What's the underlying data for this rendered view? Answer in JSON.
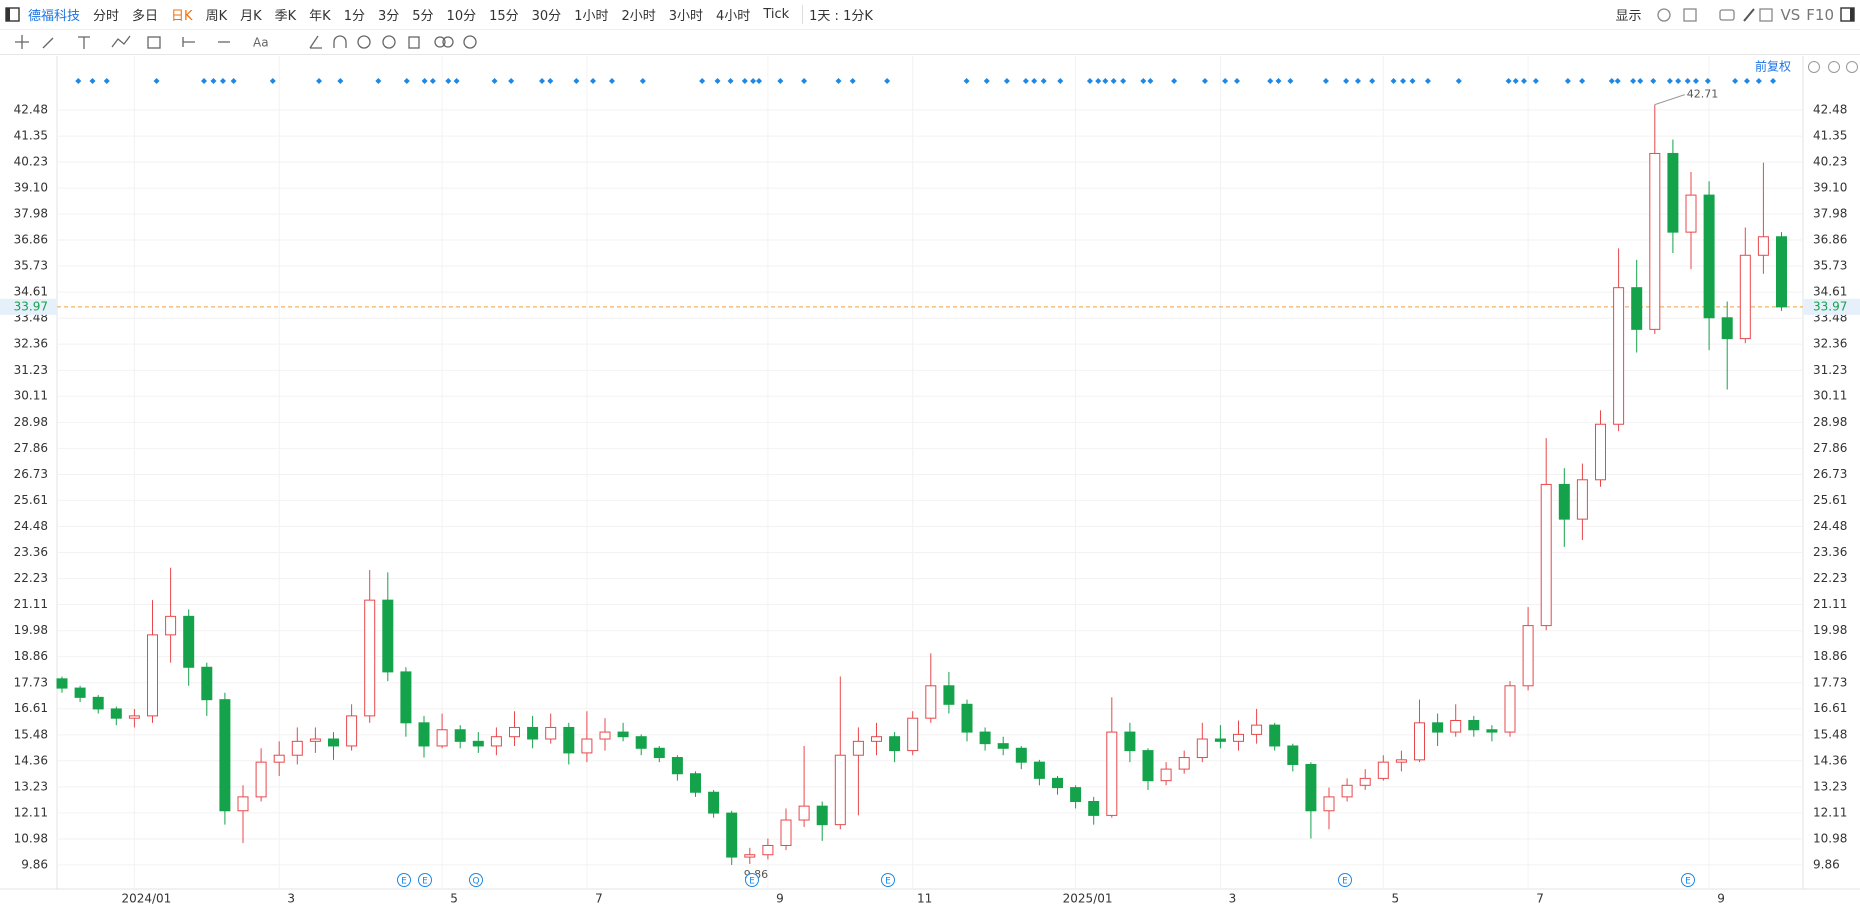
{
  "toolbar": {
    "symbol": "德福科技",
    "periods": [
      "分时",
      "多日",
      "日K",
      "周K",
      "月K",
      "季K",
      "年K",
      "1分",
      "3分",
      "5分",
      "10分",
      "15分",
      "30分",
      "1小时",
      "2小时",
      "3小时",
      "4小时",
      "Tick"
    ],
    "range": "1天 : 1分K",
    "display": "显示",
    "vs": "VS",
    "f10": "F10"
  },
  "adjust": "前复权",
  "chart_data": {
    "type": "candlestick",
    "categories": [
      null,
      null,
      null,
      null,
      "2024/01",
      null,
      null,
      null,
      null,
      null,
      null,
      null,
      "3",
      null,
      null,
      null,
      null,
      null,
      null,
      null,
      null,
      "5",
      null,
      null,
      null,
      null,
      null,
      null,
      null,
      "7",
      null,
      null,
      null,
      null,
      null,
      null,
      null,
      null,
      null,
      "9",
      null,
      null,
      null,
      null,
      null,
      null,
      null,
      "11",
      null,
      null,
      null,
      null,
      null,
      null,
      null,
      null,
      "2025/01",
      null,
      null,
      null,
      null,
      null,
      null,
      null,
      "3",
      null,
      null,
      null,
      null,
      null,
      null,
      null,
      null,
      "5",
      null,
      null,
      null,
      null,
      null,
      null,
      null,
      "7",
      null,
      null,
      null,
      null,
      null,
      null,
      null,
      null,
      null,
      "9",
      null,
      null,
      null,
      null
    ],
    "open": [
      17.9,
      17.5,
      17.1,
      16.6,
      16.2,
      16.3,
      19.8,
      20.6,
      18.4,
      17.0,
      12.2,
      12.8,
      14.3,
      14.6,
      15.2,
      15.3,
      15.0,
      16.3,
      21.3,
      18.2,
      16.0,
      15.0,
      15.7,
      15.2,
      15.0,
      15.4,
      15.8,
      15.3,
      15.8,
      14.7,
      15.3,
      15.6,
      15.4,
      14.9,
      14.5,
      13.8,
      13.0,
      12.1,
      10.2,
      10.3,
      10.7,
      11.8,
      12.4,
      11.6,
      14.6,
      15.2,
      15.4,
      14.8,
      16.2,
      17.6,
      16.8,
      15.6,
      15.1,
      14.9,
      14.3,
      13.6,
      13.2,
      12.6,
      12.0,
      15.6,
      14.8,
      13.5,
      14.0,
      14.5,
      15.3,
      15.2,
      15.5,
      15.9,
      15.0,
      14.2,
      12.2,
      12.8,
      13.3,
      13.6,
      14.3,
      14.4,
      16.0,
      15.6,
      16.1,
      15.7,
      15.6,
      17.6,
      20.2,
      26.3,
      24.8,
      26.5,
      28.9,
      34.8,
      33.0,
      40.6,
      37.2,
      38.8,
      33.5,
      32.6,
      36.2,
      37.0
    ],
    "high": [
      18.0,
      17.6,
      17.2,
      16.7,
      16.6,
      21.3,
      22.7,
      20.9,
      18.6,
      17.3,
      13.3,
      14.9,
      15.2,
      15.8,
      15.8,
      15.6,
      16.8,
      22.6,
      22.5,
      18.4,
      16.3,
      16.4,
      15.9,
      15.6,
      15.8,
      16.5,
      16.3,
      16.4,
      16.0,
      16.5,
      16.2,
      16.0,
      15.5,
      15.0,
      14.6,
      13.9,
      13.1,
      12.2,
      10.6,
      11.0,
      12.3,
      15.0,
      12.6,
      18.0,
      15.8,
      16.0,
      15.6,
      16.5,
      19.0,
      18.2,
      17.0,
      15.8,
      15.4,
      15.0,
      14.4,
      13.7,
      13.3,
      12.8,
      17.1,
      16.0,
      14.9,
      14.3,
      14.8,
      16.0,
      15.9,
      16.1,
      16.6,
      16.0,
      15.1,
      14.3,
      13.2,
      13.6,
      14.0,
      14.6,
      14.8,
      17.0,
      16.4,
      16.8,
      16.3,
      15.9,
      17.8,
      21.0,
      28.3,
      27.0,
      27.2,
      29.5,
      36.5,
      36.0,
      42.71,
      41.2,
      39.8,
      39.4,
      34.2,
      37.4,
      40.2,
      37.2
    ],
    "low": [
      17.3,
      16.9,
      16.4,
      15.9,
      15.8,
      16.0,
      18.6,
      17.6,
      16.3,
      11.6,
      10.8,
      12.6,
      13.7,
      14.2,
      14.7,
      14.4,
      14.8,
      16.0,
      17.8,
      15.4,
      14.5,
      14.9,
      14.9,
      14.7,
      14.6,
      15.0,
      14.9,
      15.1,
      14.2,
      14.3,
      14.8,
      15.2,
      14.6,
      14.3,
      13.5,
      12.8,
      11.9,
      9.86,
      9.9,
      10.1,
      10.5,
      11.5,
      10.9,
      11.4,
      12.0,
      14.6,
      14.3,
      14.6,
      16.0,
      16.4,
      15.2,
      14.8,
      14.6,
      14.0,
      13.3,
      12.9,
      12.3,
      11.6,
      11.9,
      14.3,
      13.1,
      13.3,
      13.8,
      14.3,
      14.9,
      14.8,
      15.1,
      14.8,
      13.9,
      11.0,
      11.4,
      12.6,
      13.1,
      13.5,
      13.9,
      14.3,
      15.0,
      15.4,
      15.4,
      15.2,
      15.4,
      17.4,
      20.0,
      23.6,
      23.9,
      26.2,
      28.6,
      32.0,
      32.8,
      36.3,
      35.6,
      32.1,
      30.4,
      32.4,
      35.4,
      33.8
    ],
    "close": [
      17.5,
      17.1,
      16.6,
      16.2,
      16.3,
      19.8,
      20.6,
      18.4,
      17.0,
      12.2,
      12.8,
      14.3,
      14.6,
      15.2,
      15.3,
      15.0,
      16.3,
      21.3,
      18.2,
      16.0,
      15.0,
      15.7,
      15.2,
      15.0,
      15.4,
      15.8,
      15.3,
      15.8,
      14.7,
      15.3,
      15.6,
      15.4,
      14.9,
      14.5,
      13.8,
      13.0,
      12.1,
      10.2,
      10.3,
      10.7,
      11.8,
      12.4,
      11.6,
      14.6,
      15.2,
      15.4,
      14.8,
      16.2,
      17.6,
      16.8,
      15.6,
      15.1,
      14.9,
      14.3,
      13.6,
      13.2,
      12.6,
      12.0,
      15.6,
      14.8,
      13.5,
      14.0,
      14.5,
      15.3,
      15.2,
      15.5,
      15.9,
      15.0,
      14.2,
      12.2,
      12.8,
      13.3,
      13.6,
      14.3,
      14.4,
      16.0,
      15.6,
      16.1,
      15.7,
      15.6,
      17.6,
      20.2,
      26.3,
      24.8,
      26.5,
      28.9,
      34.8,
      33.0,
      40.6,
      37.2,
      38.8,
      33.5,
      32.6,
      36.2,
      37.0,
      33.97
    ],
    "up_color": "#e8484b",
    "down_color": "#14a24a",
    "ylim": [
      8.82,
      44.81
    ],
    "yticks": [
      9.86,
      10.98,
      12.11,
      13.23,
      14.36,
      15.48,
      16.61,
      17.73,
      18.86,
      19.98,
      21.11,
      22.23,
      23.36,
      24.48,
      25.61,
      26.73,
      27.86,
      28.98,
      30.11,
      31.23,
      32.36,
      33.48,
      34.61,
      35.73,
      36.86,
      37.98,
      {
        "value": 39.1,
        "label": "39.10"
      },
      40.23,
      41.35,
      42.48
    ],
    "grid": true,
    "last_price": 33.97,
    "event_labels": [
      "E",
      "E",
      "Q",
      "E",
      "E",
      "E",
      "E"
    ]
  }
}
